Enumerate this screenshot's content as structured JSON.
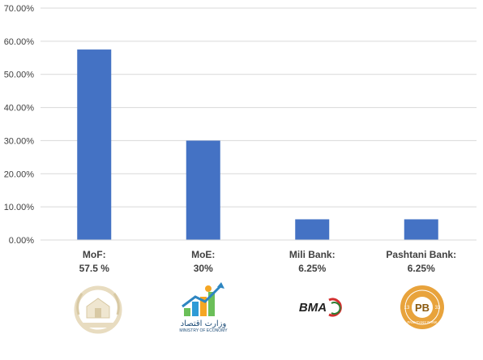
{
  "chart_data": {
    "type": "bar",
    "categories": [
      {
        "line1": "MoF:",
        "line2": "57.5 %"
      },
      {
        "line1": "MoE:",
        "line2": "30%"
      },
      {
        "line1": "Mili Bank:",
        "line2": "6.25%"
      },
      {
        "line1": "Pashtani Bank:",
        "line2": "6.25%"
      }
    ],
    "values": [
      57.5,
      30,
      6.25,
      6.25
    ],
    "ylim": [
      0,
      70
    ],
    "yticks": [
      "0.00%",
      "10.00%",
      "20.00%",
      "30.00%",
      "40.00%",
      "50.00%",
      "60.00%",
      "70.00%"
    ],
    "grid": true,
    "bar_color": "#4472C4",
    "logos": [
      {
        "icon": "afghanistan-emblem-icon"
      },
      {
        "icon": "ministry-of-economy-logo-icon",
        "text": "وزارت اقتصاد",
        "subtext": "MINISTRY OF ECONOMY"
      },
      {
        "icon": "bma-bank-logo-icon",
        "text": "BMA"
      },
      {
        "icon": "pashtani-bank-logo-icon",
        "text": "PB",
        "left": "13",
        "right": "33",
        "ring": "PASHTANY BANK"
      }
    ]
  }
}
